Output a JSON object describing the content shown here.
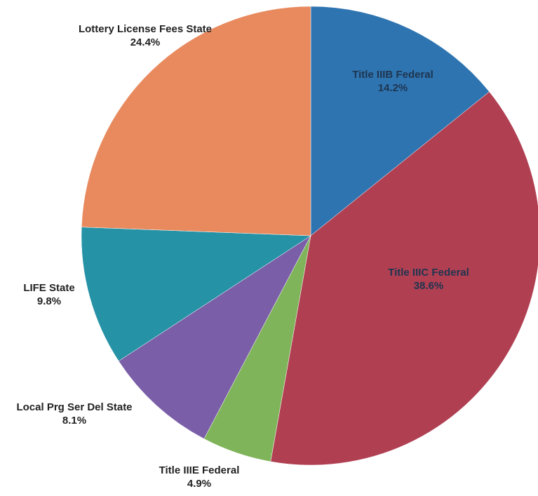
{
  "chart_data": {
    "type": "pie",
    "title": "",
    "start_angle_deg": 0,
    "direction": "clockwise",
    "slices": [
      {
        "label": "Title IIIB Federal",
        "value_text": "14.2%",
        "value": 14.2,
        "color": "#2e74b0",
        "label_color": "#1f3550"
      },
      {
        "label": "Title IIIC Federal",
        "value_text": "38.6%",
        "value": 38.6,
        "color": "#b03f52",
        "label_color": "#1f3550"
      },
      {
        "label": "Title IIIE Federal",
        "value_text": "4.9%",
        "value": 4.9,
        "color": "#7fb45a",
        "label_color": "#222222"
      },
      {
        "label": "Local Prg Ser Del State",
        "value_text": "8.1%",
        "value": 8.1,
        "color": "#7a5fa8",
        "label_color": "#222222"
      },
      {
        "label": "LIFE State",
        "value_text": "9.8%",
        "value": 9.8,
        "color": "#2592a6",
        "label_color": "#222222"
      },
      {
        "label": "Lottery License Fees State",
        "value_text": "24.4%",
        "value": 24.4,
        "color": "#e88a5e",
        "label_color": "#222222"
      }
    ]
  }
}
